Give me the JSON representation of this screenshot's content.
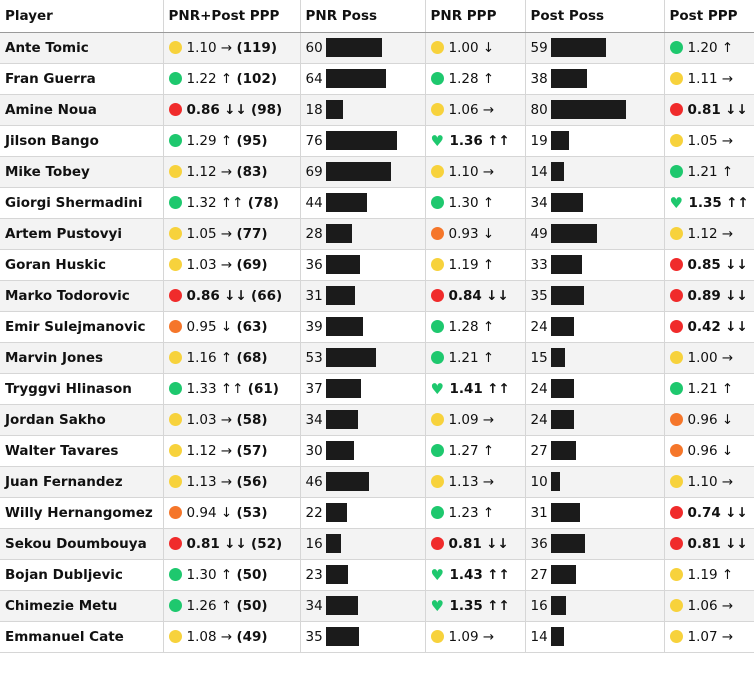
{
  "chart_data": {
    "type": "table",
    "columns": [
      "Player",
      "PNR+Post PPP",
      "PNR Poss",
      "PNR PPP",
      "Post Poss",
      "Post PPP"
    ],
    "level_colors": {
      "green": "#1ec86e",
      "yellow": "#f7d23c",
      "orange": "#f5762a",
      "red": "#f02b2b",
      "heart": "#1ec86e"
    },
    "rows": [
      {
        "player": "Ante Tomic",
        "comb": {
          "level": "yellow",
          "ppp": "1.10",
          "arrow": "→",
          "poss": "(119)",
          "bold": false
        },
        "pnr_poss": 60,
        "pnr": {
          "level": "yellow",
          "ppp": "1.00",
          "arrow": "↓",
          "bold": false
        },
        "post_poss": 59,
        "post": {
          "level": "green",
          "ppp": "1.20",
          "arrow": "↑",
          "bold": false
        }
      },
      {
        "player": "Fran Guerra",
        "comb": {
          "level": "green",
          "ppp": "1.22",
          "arrow": "↑",
          "poss": "(102)",
          "bold": false
        },
        "pnr_poss": 64,
        "pnr": {
          "level": "green",
          "ppp": "1.28",
          "arrow": "↑",
          "bold": false
        },
        "post_poss": 38,
        "post": {
          "level": "yellow",
          "ppp": "1.11",
          "arrow": "→",
          "bold": false
        }
      },
      {
        "player": "Amine Noua",
        "comb": {
          "level": "red",
          "ppp": "0.86",
          "arrow": "↓↓",
          "poss": "(98)",
          "bold": true
        },
        "pnr_poss": 18,
        "pnr": {
          "level": "yellow",
          "ppp": "1.06",
          "arrow": "→",
          "bold": false
        },
        "post_poss": 80,
        "post": {
          "level": "red",
          "ppp": "0.81",
          "arrow": "↓↓",
          "bold": true
        }
      },
      {
        "player": "Jilson Bango",
        "comb": {
          "level": "green",
          "ppp": "1.29",
          "arrow": "↑",
          "poss": "(95)",
          "bold": false
        },
        "pnr_poss": 76,
        "pnr": {
          "level": "heart",
          "ppp": "1.36",
          "arrow": "↑↑",
          "bold": true
        },
        "post_poss": 19,
        "post": {
          "level": "yellow",
          "ppp": "1.05",
          "arrow": "→",
          "bold": false
        }
      },
      {
        "player": "Mike Tobey",
        "comb": {
          "level": "yellow",
          "ppp": "1.12",
          "arrow": "→",
          "poss": "(83)",
          "bold": false
        },
        "pnr_poss": 69,
        "pnr": {
          "level": "yellow",
          "ppp": "1.10",
          "arrow": "→",
          "bold": false
        },
        "post_poss": 14,
        "post": {
          "level": "green",
          "ppp": "1.21",
          "arrow": "↑",
          "bold": false
        }
      },
      {
        "player": "Giorgi Shermadini",
        "comb": {
          "level": "green",
          "ppp": "1.32",
          "arrow": "↑↑",
          "poss": "(78)",
          "bold": false
        },
        "pnr_poss": 44,
        "pnr": {
          "level": "green",
          "ppp": "1.30",
          "arrow": "↑",
          "bold": false
        },
        "post_poss": 34,
        "post": {
          "level": "heart",
          "ppp": "1.35",
          "arrow": "↑↑",
          "bold": true
        }
      },
      {
        "player": "Artem Pustovyi",
        "comb": {
          "level": "yellow",
          "ppp": "1.05",
          "arrow": "→",
          "poss": "(77)",
          "bold": false
        },
        "pnr_poss": 28,
        "pnr": {
          "level": "orange",
          "ppp": "0.93",
          "arrow": "↓",
          "bold": false
        },
        "post_poss": 49,
        "post": {
          "level": "yellow",
          "ppp": "1.12",
          "arrow": "→",
          "bold": false
        }
      },
      {
        "player": "Goran Huskic",
        "comb": {
          "level": "yellow",
          "ppp": "1.03",
          "arrow": "→",
          "poss": "(69)",
          "bold": false
        },
        "pnr_poss": 36,
        "pnr": {
          "level": "yellow",
          "ppp": "1.19",
          "arrow": "↑",
          "bold": false
        },
        "post_poss": 33,
        "post": {
          "level": "red",
          "ppp": "0.85",
          "arrow": "↓↓",
          "bold": true
        }
      },
      {
        "player": "Marko Todorovic",
        "comb": {
          "level": "red",
          "ppp": "0.86",
          "arrow": "↓↓",
          "poss": "(66)",
          "bold": true
        },
        "pnr_poss": 31,
        "pnr": {
          "level": "red",
          "ppp": "0.84",
          "arrow": "↓↓",
          "bold": true
        },
        "post_poss": 35,
        "post": {
          "level": "red",
          "ppp": "0.89",
          "arrow": "↓↓",
          "bold": true
        }
      },
      {
        "player": "Emir Sulejmanovic",
        "comb": {
          "level": "orange",
          "ppp": "0.95",
          "arrow": "↓",
          "poss": "(63)",
          "bold": false
        },
        "pnr_poss": 39,
        "pnr": {
          "level": "green",
          "ppp": "1.28",
          "arrow": "↑",
          "bold": false
        },
        "post_poss": 24,
        "post": {
          "level": "red",
          "ppp": "0.42",
          "arrow": "↓↓",
          "bold": true
        }
      },
      {
        "player": "Marvin Jones",
        "comb": {
          "level": "yellow",
          "ppp": "1.16",
          "arrow": "↑",
          "poss": "(68)",
          "bold": false
        },
        "pnr_poss": 53,
        "pnr": {
          "level": "green",
          "ppp": "1.21",
          "arrow": "↑",
          "bold": false
        },
        "post_poss": 15,
        "post": {
          "level": "yellow",
          "ppp": "1.00",
          "arrow": "→",
          "bold": false
        }
      },
      {
        "player": "Tryggvi Hlinason",
        "comb": {
          "level": "green",
          "ppp": "1.33",
          "arrow": "↑↑",
          "poss": "(61)",
          "bold": false
        },
        "pnr_poss": 37,
        "pnr": {
          "level": "heart",
          "ppp": "1.41",
          "arrow": "↑↑",
          "bold": true
        },
        "post_poss": 24,
        "post": {
          "level": "green",
          "ppp": "1.21",
          "arrow": "↑",
          "bold": false
        }
      },
      {
        "player": "Jordan Sakho",
        "comb": {
          "level": "yellow",
          "ppp": "1.03",
          "arrow": "→",
          "poss": "(58)",
          "bold": false
        },
        "pnr_poss": 34,
        "pnr": {
          "level": "yellow",
          "ppp": "1.09",
          "arrow": "→",
          "bold": false
        },
        "post_poss": 24,
        "post": {
          "level": "orange",
          "ppp": "0.96",
          "arrow": "↓",
          "bold": false
        }
      },
      {
        "player": "Walter Tavares",
        "comb": {
          "level": "yellow",
          "ppp": "1.12",
          "arrow": "→",
          "poss": "(57)",
          "bold": false
        },
        "pnr_poss": 30,
        "pnr": {
          "level": "green",
          "ppp": "1.27",
          "arrow": "↑",
          "bold": false
        },
        "post_poss": 27,
        "post": {
          "level": "orange",
          "ppp": "0.96",
          "arrow": "↓",
          "bold": false
        }
      },
      {
        "player": "Juan Fernandez",
        "comb": {
          "level": "yellow",
          "ppp": "1.13",
          "arrow": "→",
          "poss": "(56)",
          "bold": false
        },
        "pnr_poss": 46,
        "pnr": {
          "level": "yellow",
          "ppp": "1.13",
          "arrow": "→",
          "bold": false
        },
        "post_poss": 10,
        "post": {
          "level": "yellow",
          "ppp": "1.10",
          "arrow": "→",
          "bold": false
        }
      },
      {
        "player": "Willy Hernangomez",
        "comb": {
          "level": "orange",
          "ppp": "0.94",
          "arrow": "↓",
          "poss": "(53)",
          "bold": false
        },
        "pnr_poss": 22,
        "pnr": {
          "level": "green",
          "ppp": "1.23",
          "arrow": "↑",
          "bold": false
        },
        "post_poss": 31,
        "post": {
          "level": "red",
          "ppp": "0.74",
          "arrow": "↓↓",
          "bold": true
        }
      },
      {
        "player": "Sekou Doumbouya",
        "comb": {
          "level": "red",
          "ppp": "0.81",
          "arrow": "↓↓",
          "poss": "(52)",
          "bold": true
        },
        "pnr_poss": 16,
        "pnr": {
          "level": "red",
          "ppp": "0.81",
          "arrow": "↓↓",
          "bold": true
        },
        "post_poss": 36,
        "post": {
          "level": "red",
          "ppp": "0.81",
          "arrow": "↓↓",
          "bold": true
        }
      },
      {
        "player": "Bojan Dubljevic",
        "comb": {
          "level": "green",
          "ppp": "1.30",
          "arrow": "↑",
          "poss": "(50)",
          "bold": false
        },
        "pnr_poss": 23,
        "pnr": {
          "level": "heart",
          "ppp": "1.43",
          "arrow": "↑↑",
          "bold": true
        },
        "post_poss": 27,
        "post": {
          "level": "yellow",
          "ppp": "1.19",
          "arrow": "↑",
          "bold": false
        }
      },
      {
        "player": "Chimezie Metu",
        "comb": {
          "level": "green",
          "ppp": "1.26",
          "arrow": "↑",
          "poss": "(50)",
          "bold": false
        },
        "pnr_poss": 34,
        "pnr": {
          "level": "heart",
          "ppp": "1.35",
          "arrow": "↑↑",
          "bold": true
        },
        "post_poss": 16,
        "post": {
          "level": "yellow",
          "ppp": "1.06",
          "arrow": "→",
          "bold": false
        }
      },
      {
        "player": "Emmanuel Cate",
        "comb": {
          "level": "yellow",
          "ppp": "1.08",
          "arrow": "→",
          "poss": "(49)",
          "bold": false
        },
        "pnr_poss": 35,
        "pnr": {
          "level": "yellow",
          "ppp": "1.09",
          "arrow": "→",
          "bold": false
        },
        "post_poss": 14,
        "post": {
          "level": "yellow",
          "ppp": "1.07",
          "arrow": "→",
          "bold": false
        }
      }
    ]
  }
}
